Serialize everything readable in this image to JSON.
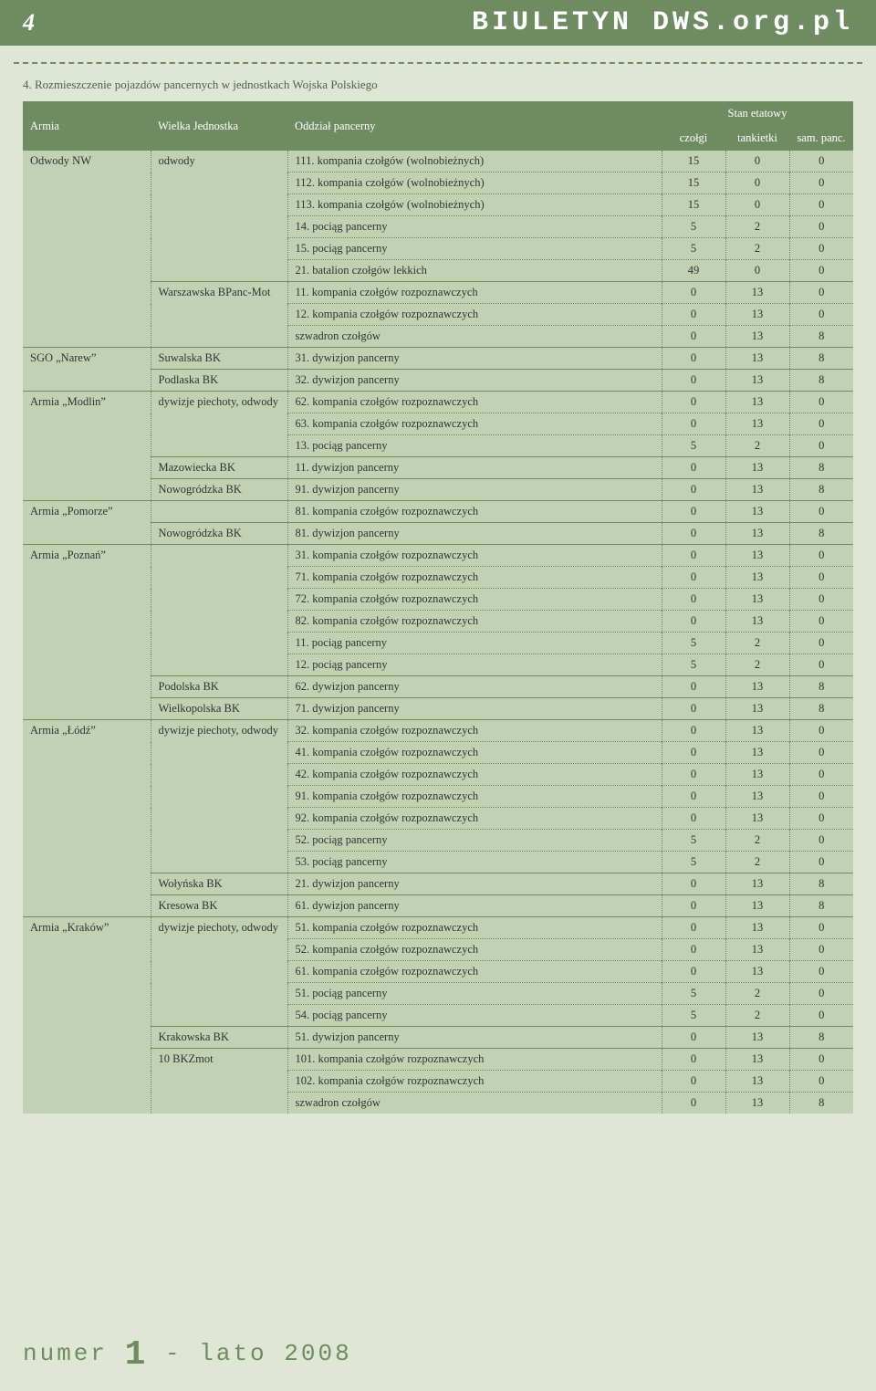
{
  "page_number": "4",
  "site_title": "BIULETYN DWS.org.pl",
  "caption": "4. Rozmieszczenie pojazdów pancernych w jednostkach Wojska Polskiego",
  "columns": {
    "armia": "Armia",
    "jednostka": "Wielka Jednostka",
    "oddzial": "Oddział pancerny",
    "stan": "Stan etatowy",
    "czolgi": "czołgi",
    "tankietki": "tankietki",
    "sam": "sam. panc."
  },
  "rows": [
    {
      "armia": "Odwody NW",
      "jednostka": "odwody",
      "oddzial": "111. kompania czołgów (wolnobieżnych)",
      "c": "15",
      "t": "0",
      "s": "0",
      "nA": true,
      "nJ": true
    },
    {
      "oddzial": "112. kompania czołgów (wolnobieżnych)",
      "c": "15",
      "t": "0",
      "s": "0"
    },
    {
      "oddzial": "113. kompania czołgów (wolnobieżnych)",
      "c": "15",
      "t": "0",
      "s": "0"
    },
    {
      "oddzial": "14. pociąg pancerny",
      "c": "5",
      "t": "2",
      "s": "0"
    },
    {
      "oddzial": "15. pociąg pancerny",
      "c": "5",
      "t": "2",
      "s": "0"
    },
    {
      "oddzial": "21. batalion czołgów lekkich",
      "c": "49",
      "t": "0",
      "s": "0"
    },
    {
      "jednostka": "Warszawska BPanc-Mot",
      "oddzial": "11. kompania czołgów rozpoznawczych",
      "c": "0",
      "t": "13",
      "s": "0",
      "nJ": true
    },
    {
      "oddzial": "12. kompania czołgów rozpoznawczych",
      "c": "0",
      "t": "13",
      "s": "0"
    },
    {
      "oddzial": "szwadron czołgów",
      "c": "0",
      "t": "13",
      "s": "8"
    },
    {
      "armia": "SGO „Narew”",
      "jednostka": "Suwalska BK",
      "oddzial": "31. dywizjon pancerny",
      "c": "0",
      "t": "13",
      "s": "8",
      "nA": true,
      "nJ": true
    },
    {
      "jednostka": "Podlaska BK",
      "oddzial": "32. dywizjon pancerny",
      "c": "0",
      "t": "13",
      "s": "8",
      "nJ": true
    },
    {
      "armia": "Armia „Modlin”",
      "jednostka": "dywizje piechoty, odwody",
      "oddzial": "62. kompania czołgów rozpoznawczych",
      "c": "0",
      "t": "13",
      "s": "0",
      "nA": true,
      "nJ": true
    },
    {
      "oddzial": "63. kompania czołgów rozpoznawczych",
      "c": "0",
      "t": "13",
      "s": "0"
    },
    {
      "oddzial": "13. pociąg pancerny",
      "c": "5",
      "t": "2",
      "s": "0"
    },
    {
      "jednostka": "Mazowiecka BK",
      "oddzial": "11. dywizjon pancerny",
      "c": "0",
      "t": "13",
      "s": "8",
      "nJ": true
    },
    {
      "jednostka": "Nowogródzka BK",
      "oddzial": "91. dywizjon pancerny",
      "c": "0",
      "t": "13",
      "s": "8",
      "nJ": true
    },
    {
      "armia": "Armia „Pomorze”",
      "oddzial": "81. kompania czołgów rozpoznawczych",
      "c": "0",
      "t": "13",
      "s": "0",
      "nA": true,
      "nJ": true
    },
    {
      "jednostka": "Nowogródzka BK",
      "oddzial": "81. dywizjon pancerny",
      "c": "0",
      "t": "13",
      "s": "8",
      "nJ": true
    },
    {
      "armia": "Armia „Poznań”",
      "oddzial": "31. kompania czołgów rozpoznawczych",
      "c": "0",
      "t": "13",
      "s": "0",
      "nA": true,
      "nJ": true
    },
    {
      "oddzial": "71. kompania czołgów rozpoznawczych",
      "c": "0",
      "t": "13",
      "s": "0"
    },
    {
      "oddzial": "72. kompania czołgów rozpoznawczych",
      "c": "0",
      "t": "13",
      "s": "0"
    },
    {
      "oddzial": "82. kompania czołgów rozpoznawczych",
      "c": "0",
      "t": "13",
      "s": "0"
    },
    {
      "oddzial": "11. pociąg pancerny",
      "c": "5",
      "t": "2",
      "s": "0"
    },
    {
      "oddzial": "12. pociąg pancerny",
      "c": "5",
      "t": "2",
      "s": "0"
    },
    {
      "jednostka": "Podolska BK",
      "oddzial": "62. dywizjon pancerny",
      "c": "0",
      "t": "13",
      "s": "8",
      "nJ": true
    },
    {
      "jednostka": "Wielkopolska BK",
      "oddzial": "71. dywizjon pancerny",
      "c": "0",
      "t": "13",
      "s": "8",
      "nJ": true
    },
    {
      "armia": "Armia „Łódź”",
      "jednostka": "dywizje piechoty, odwody",
      "oddzial": "32. kompania czołgów rozpoznawczych",
      "c": "0",
      "t": "13",
      "s": "0",
      "nA": true,
      "nJ": true
    },
    {
      "oddzial": "41. kompania czołgów rozpoznawczych",
      "c": "0",
      "t": "13",
      "s": "0"
    },
    {
      "oddzial": "42. kompania czołgów rozpoznawczych",
      "c": "0",
      "t": "13",
      "s": "0"
    },
    {
      "oddzial": "91. kompania czołgów rozpoznawczych",
      "c": "0",
      "t": "13",
      "s": "0"
    },
    {
      "oddzial": "92. kompania czołgów rozpoznawczych",
      "c": "0",
      "t": "13",
      "s": "0"
    },
    {
      "oddzial": "52. pociąg pancerny",
      "c": "5",
      "t": "2",
      "s": "0"
    },
    {
      "oddzial": "53. pociąg pancerny",
      "c": "5",
      "t": "2",
      "s": "0"
    },
    {
      "jednostka": "Wołyńska BK",
      "oddzial": "21. dywizjon pancerny",
      "c": "0",
      "t": "13",
      "s": "8",
      "nJ": true
    },
    {
      "jednostka": "Kresowa BK",
      "oddzial": "61. dywizjon pancerny",
      "c": "0",
      "t": "13",
      "s": "8",
      "nJ": true
    },
    {
      "armia": "Armia „Kraków”",
      "jednostka": "dywizje piechoty, odwody",
      "oddzial": "51. kompania czołgów rozpoznawczych",
      "c": "0",
      "t": "13",
      "s": "0",
      "nA": true,
      "nJ": true
    },
    {
      "oddzial": "52. kompania czołgów rozpoznawczych",
      "c": "0",
      "t": "13",
      "s": "0"
    },
    {
      "oddzial": "61. kompania czołgów rozpoznawczych",
      "c": "0",
      "t": "13",
      "s": "0"
    },
    {
      "oddzial": "51. pociąg pancerny",
      "c": "5",
      "t": "2",
      "s": "0"
    },
    {
      "oddzial": "54. pociąg pancerny",
      "c": "5",
      "t": "2",
      "s": "0"
    },
    {
      "jednostka": "Krakowska BK",
      "oddzial": "51. dywizjon pancerny",
      "c": "0",
      "t": "13",
      "s": "8",
      "nJ": true
    },
    {
      "jednostka": "10 BKZmot",
      "oddzial": "101. kompania czołgów rozpoznawczych",
      "c": "0",
      "t": "13",
      "s": "0",
      "nJ": true
    },
    {
      "oddzial": "102. kompania czołgów rozpoznawczych",
      "c": "0",
      "t": "13",
      "s": "0"
    },
    {
      "oddzial": "szwadron czołgów",
      "c": "0",
      "t": "13",
      "s": "8"
    }
  ],
  "footer": {
    "text1": "numer ",
    "bignum": "1",
    "text2": " - lato 2008"
  }
}
